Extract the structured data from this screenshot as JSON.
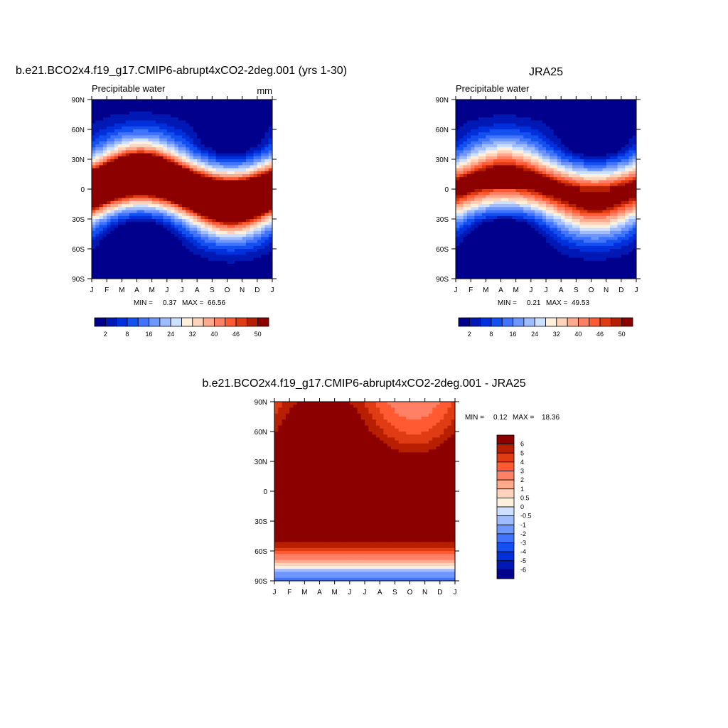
{
  "palette_model": [
    "#00008c",
    "#0018b4",
    "#0030dc",
    "#1450f0",
    "#4074ff",
    "#6e96ff",
    "#a0bcff",
    "#cee0ff",
    "#fff0dc",
    "#ffd2bc",
    "#ffaa8c",
    "#ff8064",
    "#ff5a32",
    "#e03c14",
    "#b81e00",
    "#8c0000"
  ],
  "palette_diff": [
    "#00008c",
    "#0018b4",
    "#0030dc",
    "#1450f0",
    "#4074ff",
    "#6e96ff",
    "#a0bcff",
    "#cee0ff",
    "#fff0dc",
    "#ffd2bc",
    "#ffaa8c",
    "#ff8064",
    "#ff5a32",
    "#e03c14",
    "#b81e00",
    "#8c0000"
  ],
  "chart_data": [
    {
      "id": "model",
      "type": "heatmap",
      "title": "b.e21.BCO2x4.f19_g17.CMIP6-abrupt4xCO2-2deg.001 (yrs 1-30)",
      "subtitle_left": "Precipitable water",
      "subtitle_right": "mm",
      "x_ticks": [
        "J",
        "F",
        "M",
        "A",
        "M",
        "J",
        "J",
        "A",
        "S",
        "O",
        "N",
        "D",
        "J"
      ],
      "y_ticks": [
        "90N",
        "60N",
        "30N",
        "0",
        "30S",
        "60S",
        "90S"
      ],
      "x_range": [
        0,
        12
      ],
      "y_range": [
        -90,
        90
      ],
      "min_label": "MIN =",
      "min_value": "0.37",
      "max_label": "MAX =",
      "max_value": "66.56",
      "levels": [
        2,
        5,
        8,
        12,
        16,
        20,
        24,
        28,
        32,
        36,
        40,
        43,
        46,
        48,
        50
      ],
      "colorbar_labels": [
        "2",
        "8",
        "16",
        "24",
        "32",
        "40",
        "46",
        "50"
      ],
      "colorbar_label_index": [
        0,
        2,
        4,
        6,
        8,
        10,
        12,
        14
      ],
      "field": {
        "eq_amp": 72,
        "eq_shift": 12,
        "eq_width": 30,
        "polar_n": 6,
        "polar_s": 1,
        "extra_tropics": 0
      }
    },
    {
      "id": "obs",
      "type": "heatmap",
      "title": "JRA25",
      "subtitle_left": "Precipitable water",
      "x_ticks": [
        "J",
        "F",
        "M",
        "A",
        "M",
        "J",
        "J",
        "A",
        "S",
        "O",
        "N",
        "D",
        "J"
      ],
      "y_ticks": [
        "90N",
        "60N",
        "30N",
        "0",
        "30S",
        "60S",
        "90S"
      ],
      "x_range": [
        0,
        12
      ],
      "y_range": [
        -90,
        90
      ],
      "min_label": "MIN =",
      "min_value": "0.21",
      "max_label": "MAX =",
      "max_value": "49.53",
      "levels": [
        2,
        5,
        8,
        12,
        16,
        20,
        24,
        28,
        32,
        36,
        40,
        43,
        46,
        48,
        50
      ],
      "colorbar_labels": [
        "2",
        "8",
        "16",
        "24",
        "32",
        "40",
        "46",
        "50"
      ],
      "colorbar_label_index": [
        0,
        2,
        4,
        6,
        8,
        10,
        12,
        14
      ],
      "field": {
        "eq_amp": 52,
        "eq_shift": 10,
        "eq_width": 30,
        "polar_n": 4,
        "polar_s": 0.5,
        "extra_tropics": 0
      }
    },
    {
      "id": "diff",
      "type": "heatmap",
      "title": "b.e21.BCO2x4.f19_g17.CMIP6-abrupt4xCO2-2deg.001 - JRA25",
      "x_ticks": [
        "J",
        "F",
        "M",
        "A",
        "M",
        "J",
        "J",
        "A",
        "S",
        "O",
        "N",
        "D",
        "J"
      ],
      "y_ticks": [
        "90N",
        "60N",
        "30N",
        "0",
        "30S",
        "60S",
        "90S"
      ],
      "x_range": [
        0,
        12
      ],
      "y_range": [
        -90,
        90
      ],
      "min_label": "MIN =",
      "min_value": "0.12",
      "max_label": "MAX =",
      "max_value": "18.36",
      "levels": [
        -6,
        -5,
        -4,
        -3,
        -2,
        -1,
        -0.5,
        0,
        0.5,
        1,
        2,
        3,
        4,
        5,
        6
      ],
      "colorbar_labels": [
        "6",
        "5",
        "4",
        "3",
        "2",
        "1",
        "0.5",
        "0",
        "-0.5",
        "-1",
        "-2",
        "-3",
        "-4",
        "-5",
        "-6"
      ]
    }
  ]
}
